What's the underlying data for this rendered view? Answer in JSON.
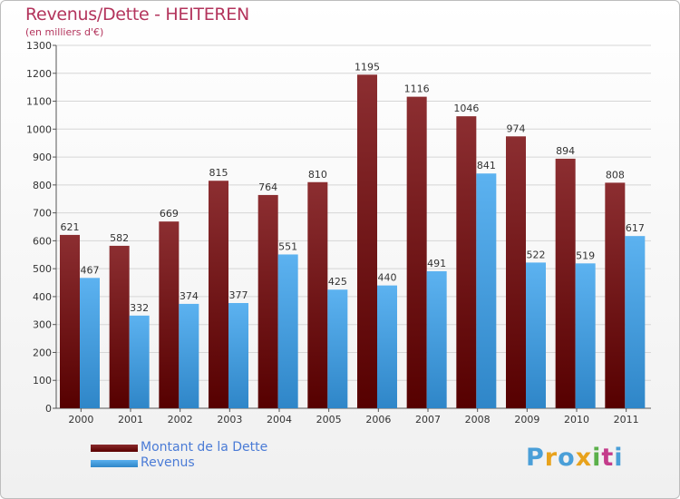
{
  "header": {
    "title": "Revenus/Dette - HEITEREN",
    "subtitle": "(en milliers d'€)"
  },
  "logo": {
    "text": "Proxiti",
    "colors": [
      "#4a9fd8",
      "#e8a21c",
      "#4a9fd8",
      "#e8a21c",
      "#5bb04a",
      "#c43c8b",
      "#4a9fd8"
    ]
  },
  "colors": {
    "debt": "#7a1a1c",
    "debt_dark": "#560000",
    "revenue": "#4fa6e6",
    "revenue_dark": "#2f86c8",
    "title": "#b3345c"
  },
  "chart_data": {
    "type": "bar",
    "categories": [
      "2000",
      "2001",
      "2002",
      "2003",
      "2004",
      "2005",
      "2006",
      "2007",
      "2008",
      "2009",
      "2010",
      "2011"
    ],
    "series": [
      {
        "name": "Montant de la Dette",
        "values": [
          621,
          582,
          669,
          815,
          764,
          810,
          1195,
          1116,
          1046,
          974,
          894,
          808
        ]
      },
      {
        "name": "Revenus",
        "values": [
          467,
          332,
          374,
          377,
          551,
          425,
          440,
          491,
          841,
          522,
          519,
          617
        ]
      }
    ],
    "yticks": [
      0,
      100,
      200,
      300,
      400,
      500,
      600,
      700,
      800,
      900,
      1000,
      1100,
      1200,
      1300
    ],
    "ylim": [
      0,
      1300
    ],
    "grid": true,
    "legend": "bottom-left"
  }
}
